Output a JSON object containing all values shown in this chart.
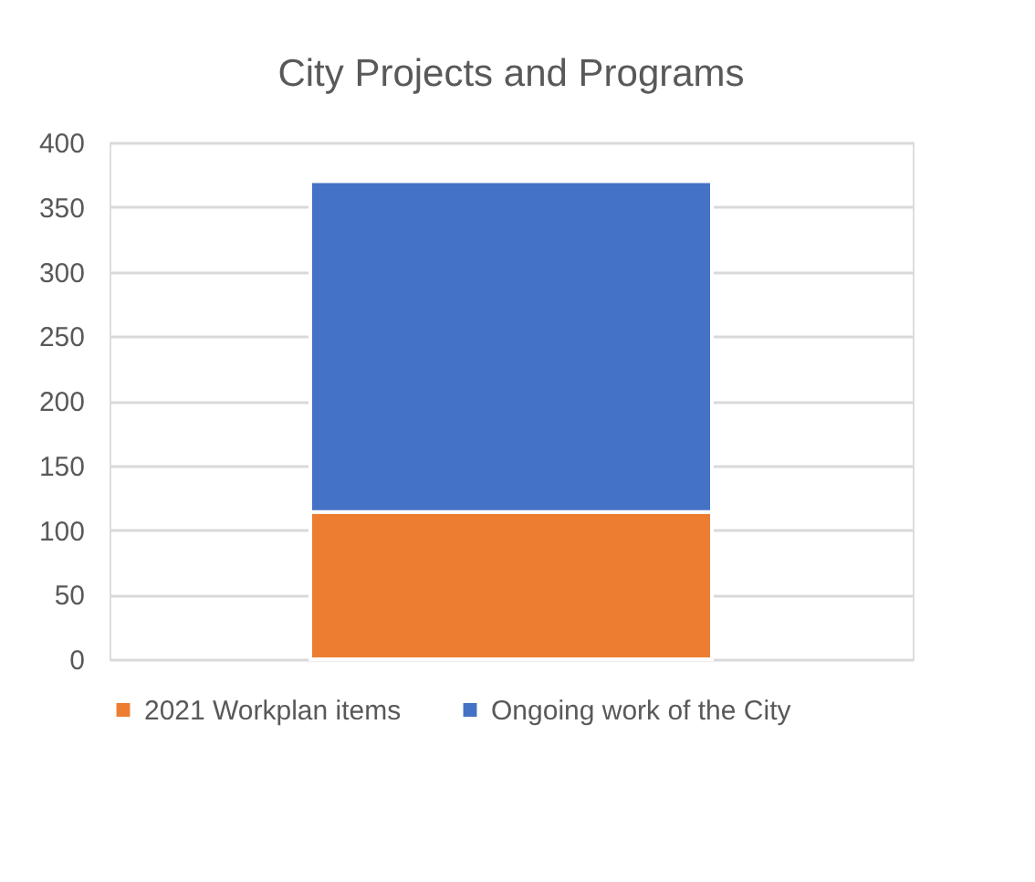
{
  "chart_data": {
    "type": "bar",
    "title": "City Projects and Programs",
    "categories": [
      null
    ],
    "stacked": true,
    "series": [
      {
        "name": "2021 Workplan items",
        "color": "#ed7d31",
        "values": [
          114
        ]
      },
      {
        "name": "Ongoing work of the City",
        "color": "#4472c4",
        "values": [
          256
        ]
      }
    ],
    "ylim": [
      0,
      400
    ],
    "yticks": [
      0,
      50,
      100,
      150,
      200,
      250,
      300,
      350,
      400
    ],
    "grid": "y",
    "legend": "bottom"
  }
}
